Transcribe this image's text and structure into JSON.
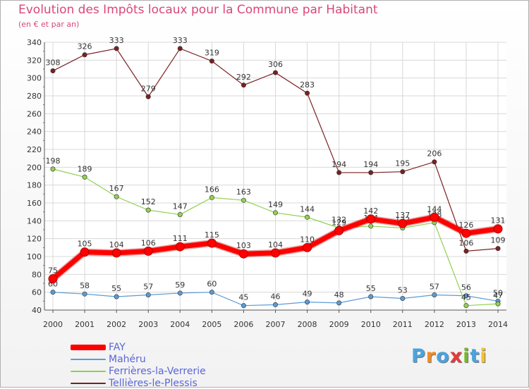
{
  "title": "Evolution des Impôts locaux pour la Commune par Habitant",
  "subtitle": "(en € et par an)",
  "brand": {
    "letters": [
      "P",
      "r",
      "o",
      "x",
      "i",
      "t",
      "i"
    ],
    "colors": [
      "#4aa3df",
      "#f28c28",
      "#4aa3df",
      "#e23b3b",
      "#76b82a",
      "#4aa3df",
      "#f2c12e"
    ]
  },
  "chart_data": {
    "type": "line",
    "title": "Evolution des Impôts locaux pour la Commune par Habitant",
    "subtitle": "(en € et par an)",
    "xlabel": "",
    "ylabel": "",
    "ylim": [
      40,
      340
    ],
    "ytick_step": 20,
    "grid": true,
    "legend_position": "bottom-left",
    "x": [
      2000,
      2001,
      2002,
      2003,
      2004,
      2005,
      2006,
      2007,
      2008,
      2009,
      2010,
      2011,
      2012,
      2013,
      2014
    ],
    "series": [
      {
        "name": "FAY",
        "color": "#ff0000",
        "emphasis": true,
        "values": [
          75,
          105,
          104,
          106,
          111,
          115,
          103,
          104,
          110,
          129,
          142,
          137,
          144,
          126,
          131
        ]
      },
      {
        "name": "Mahéru",
        "color": "#5b9bd5",
        "emphasis": false,
        "values": [
          60,
          58,
          55,
          57,
          59,
          60,
          45,
          46,
          49,
          48,
          55,
          53,
          57,
          56,
          50
        ]
      },
      {
        "name": "Ferrières-la-Verrerie",
        "color": "#92d050",
        "emphasis": false,
        "values": [
          198,
          189,
          167,
          152,
          147,
          166,
          163,
          149,
          144,
          132,
          134,
          132,
          138,
          45,
          47
        ]
      },
      {
        "name": "Tellières-le-Plessis",
        "color": "#7b2020",
        "emphasis": false,
        "values": [
          308,
          326,
          333,
          279,
          333,
          319,
          292,
          306,
          283,
          194,
          194,
          195,
          206,
          106,
          109
        ]
      }
    ]
  }
}
